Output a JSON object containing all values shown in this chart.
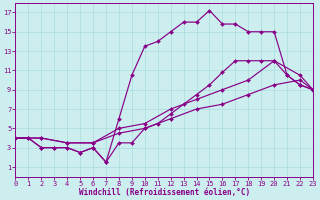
{
  "xlabel": "Windchill (Refroidissement éolien,°C)",
  "bg_color": "#cceeee",
  "grid_color": "#aadddd",
  "line_color": "#880088",
  "xlim": [
    0,
    23
  ],
  "ylim": [
    0,
    18
  ],
  "xticks": [
    0,
    1,
    2,
    3,
    4,
    5,
    6,
    7,
    8,
    9,
    10,
    11,
    12,
    13,
    14,
    15,
    16,
    17,
    18,
    19,
    20,
    21,
    22,
    23
  ],
  "yticks": [
    1,
    3,
    5,
    7,
    9,
    11,
    13,
    15,
    17
  ],
  "lines": [
    {
      "x": [
        0,
        1,
        2,
        3,
        4,
        5,
        6,
        7,
        8,
        9,
        10,
        11,
        12,
        13,
        14,
        15,
        16,
        17,
        18,
        19,
        20,
        21,
        22,
        23
      ],
      "y": [
        4,
        4,
        3,
        3,
        3,
        2.5,
        3,
        1.5,
        6,
        10.5,
        13.5,
        14,
        15,
        16,
        16,
        17.2,
        15.8,
        15.8,
        15,
        15,
        15,
        10.5,
        9.5,
        9
      ]
    },
    {
      "x": [
        0,
        1,
        2,
        3,
        4,
        5,
        6,
        7,
        8,
        9,
        10,
        11,
        12,
        13,
        14,
        15,
        16,
        17,
        18,
        19,
        20,
        21,
        22,
        23
      ],
      "y": [
        4,
        4,
        3,
        3,
        3,
        2.5,
        3,
        1.5,
        3.5,
        3.5,
        5,
        5.5,
        6.5,
        7.5,
        8.5,
        9.5,
        10.8,
        12,
        12,
        12,
        12,
        10.5,
        9.5,
        9
      ]
    },
    {
      "x": [
        0,
        2,
        4,
        6,
        8,
        10,
        12,
        14,
        16,
        18,
        20,
        22,
        23
      ],
      "y": [
        4,
        4,
        3.5,
        3.5,
        5,
        5.5,
        7,
        8,
        9,
        10,
        12,
        10.5,
        9
      ]
    },
    {
      "x": [
        0,
        2,
        4,
        6,
        8,
        10,
        12,
        14,
        16,
        18,
        20,
        22,
        23
      ],
      "y": [
        4,
        4,
        3.5,
        3.5,
        4.5,
        5,
        6,
        7,
        7.5,
        8.5,
        9.5,
        10,
        9
      ]
    }
  ]
}
